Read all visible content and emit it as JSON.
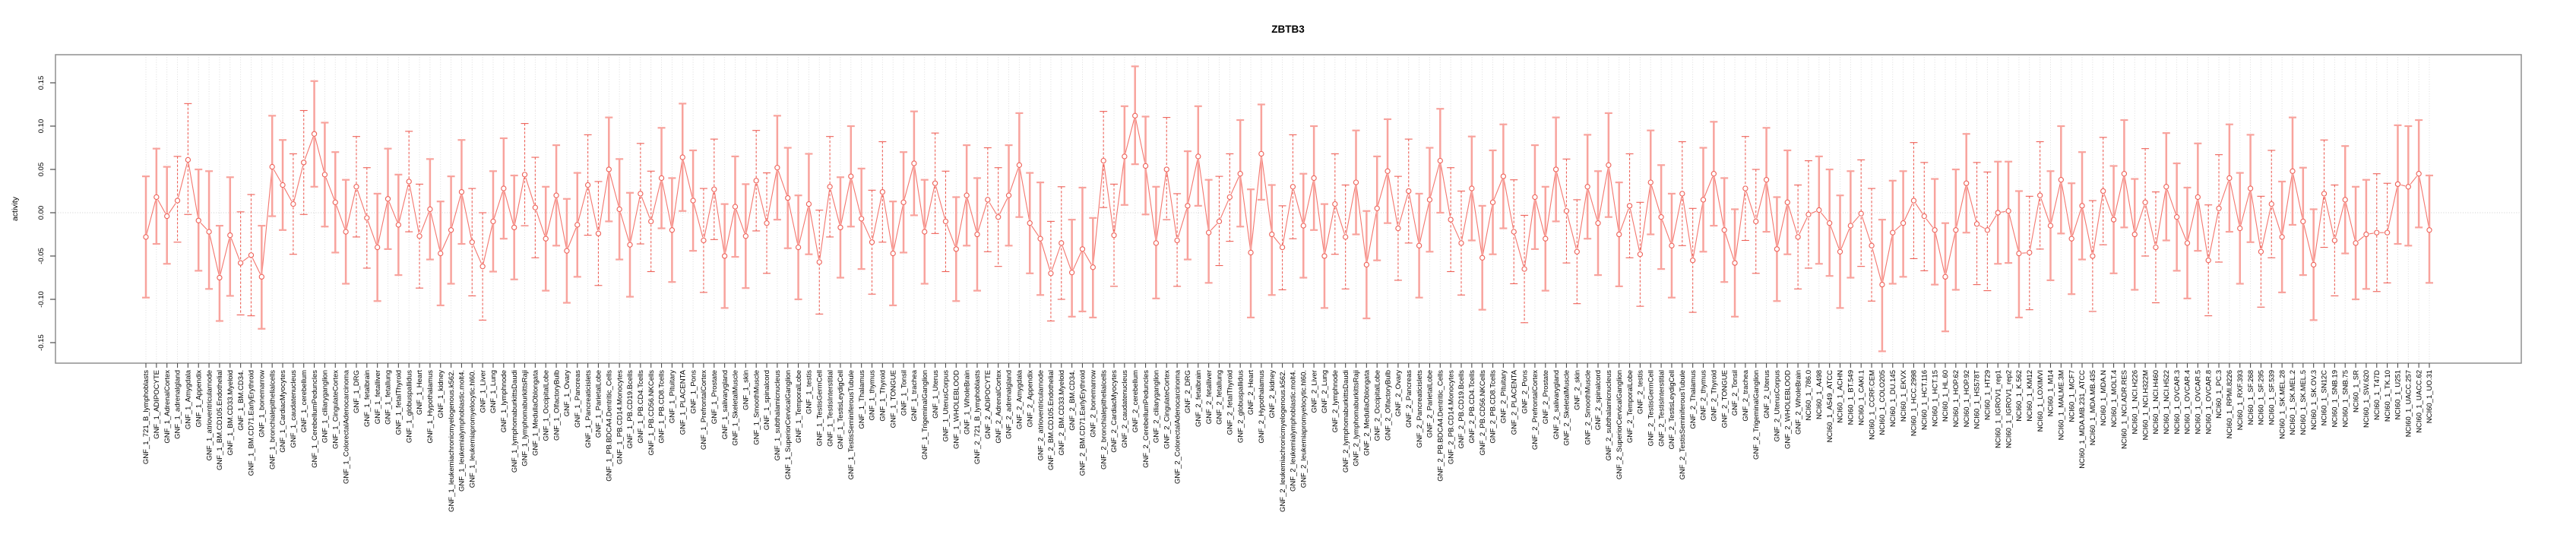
{
  "figure": {
    "title": "ZBTB3",
    "ylabel": "activity"
  },
  "style": {
    "series_line_color": "#f4766e",
    "point_stroke_color": "#ee6158",
    "point_fill_color": "#ffffff",
    "errorbar_dashed_color": "#ee6158",
    "errorbar_solid_color": "#f8a39d",
    "grid_color": "#d9d9d9",
    "zero_line_color": "#cfcfcf",
    "box_color": "#8f8f8f",
    "tick_color": "#4d4d4d",
    "text_color": "#000000",
    "background": "#ffffff"
  },
  "chart_data": {
    "type": "line",
    "subtype": "means-with-confidence-error-bars",
    "title": "ZBTB3",
    "xlabel": "",
    "ylabel": "activity",
    "legend": "none",
    "grid": "dotted vertical line per category; dotted horizontal line at 0",
    "ylim": [
      -0.174,
      0.182
    ],
    "yticks": [
      -0.15,
      -0.1,
      -0.05,
      0.0,
      0.05,
      0.1,
      0.15
    ],
    "ytick_labels": [
      "-0.15",
      "-0.10",
      "-0.05",
      "0.00",
      "0.05",
      "0.10",
      "0.15"
    ],
    "n_points": 218,
    "point_format": "[mean, ci_low, ci_high]",
    "groups": [
      {
        "prefix": "GNF_1_",
        "names_key": "gnf_tissues",
        "points_key": "points_gnf1"
      },
      {
        "prefix": "GNF_2_",
        "names_key": "gnf_tissues",
        "points_key": "points_gnf2"
      },
      {
        "prefix": "NCI60_1_",
        "names_key": "nci60_lines",
        "points_key": "points_nci60"
      }
    ],
    "gnf_tissues": [
      "721_B_lymphoblasts",
      "ADIPOCYTE",
      "AdrenalCortex",
      "adrenalgland",
      "Amygdala",
      "Appendix",
      "atrioventricularnode",
      "BM.CD105.Endothelial",
      "BM.CD33.Myeloid",
      "BM.CD34.",
      "BM.CD71.EarlyErythroid",
      "bonemarrow",
      "bronchialepithelialcells",
      "CardiacMyocytes",
      "caudatenucleus",
      "cerebellum",
      "CerebellumPeduncles",
      "ciliaryganglion",
      "CingulateCortex",
      "ColorectalAdenocarcinoma",
      "DRG",
      "fetalbrain",
      "fetalliver",
      "fetallung",
      "fetalThyroid",
      "globuspallidus",
      "Heart",
      "Hypothalamus",
      "kidney",
      "leukemiachronicmyelogenous.k562.",
      "leukemialymphoblastic.molt4.",
      "leukemiapromyelocytic.hl60.",
      "Liver",
      "Lung",
      "lymphnode",
      "lymphomaburkittsDaudi",
      "lymphomaburkittsRaji",
      "MedullaOblongata",
      "OccipitalLobe",
      "OlfactoryBulb",
      "Ovary",
      "Pancreas",
      "Pancreaticislets",
      "ParietalLobe",
      "PB.BDCA4.Dentritic_Cells",
      "PB.CD14.Monocytes",
      "PB.CD19.Bcells",
      "PB.CD4.Tcells",
      "PB.CD56.NKCells",
      "PB.CD8.Tcells",
      "Pituitary",
      "PLACENTA",
      "Pons",
      "PrefrontalCortex",
      "Prostate",
      "salivarygland",
      "SkeletalMuscle",
      "skin",
      "SmoothMuscle",
      "spinalcord",
      "subthalamicnucleus",
      "SuperiorCervicalGanglion",
      "TemporalLobe",
      "testis",
      "TestisGermCell",
      "TestisInterstitial",
      "TestisLeydigCell",
      "TestisSeminiferousTubule",
      "Thalamus",
      "thymus",
      "Thyroid",
      "TONGUE",
      "Tonsil",
      "trachea",
      "TrigeminalGanglion",
      "Uterus",
      "UterusCorpus",
      "WHOLEBLOOD",
      "WholeBrain"
    ],
    "nci60_lines": [
      "786.0",
      "A498",
      "A549_ATCC",
      "ACHN",
      "BT.549",
      "CAKI.1",
      "CCRF.CEM",
      "COLO205",
      "DU.145",
      "EKVX",
      "HCC.2998",
      "HCT.116",
      "HCT.15",
      "HL.60",
      "HOP.62",
      "HOP.92",
      "HS578T",
      "HT29",
      "IGROV1_rep1",
      "IGROV1_rep2",
      "K.562",
      "KM12",
      "LOXIMVI",
      "M14",
      "MALME.3M",
      "MCF7",
      "MDA.MB.231_ATCC",
      "MDA.MB.435",
      "MDA.N",
      "MOLT.4",
      "NCI.ADR.RES",
      "NCI.H226",
      "NCI.H322M",
      "NCI.H460",
      "NCI.H522",
      "OVCAR.3",
      "OVCAR.4",
      "OVCAR.5",
      "OVCAR.8",
      "PC.3",
      "RPMI.8226",
      "RXF.393",
      "SF.268",
      "SF.295",
      "SF.539",
      "SK.MEL.28",
      "SK.MEL.2",
      "SK.MEL.5",
      "SK.OV.3",
      "SN12C",
      "SNB.19",
      "SNB.75",
      "SR",
      "SW.620",
      "T47D",
      "TK.10",
      "U251",
      "UACC.257",
      "UACC.62",
      "UO.31"
    ],
    "points_gnf1": [
      [
        -0.028,
        -0.098,
        0.042
      ],
      [
        0.018,
        -0.036,
        0.074
      ],
      [
        -0.004,
        -0.059,
        0.053
      ],
      [
        0.014,
        -0.034,
        0.065
      ],
      [
        0.061,
        -0.002,
        0.126
      ],
      [
        -0.009,
        -0.067,
        0.05
      ],
      [
        -0.022,
        -0.088,
        0.048
      ],
      [
        -0.075,
        -0.125,
        -0.015
      ],
      [
        -0.026,
        -0.096,
        0.041
      ],
      [
        -0.058,
        -0.118,
        0.001
      ],
      [
        -0.049,
        -0.119,
        0.021
      ],
      [
        -0.074,
        -0.134,
        -0.015
      ],
      [
        0.053,
        -0.004,
        0.112
      ],
      [
        0.032,
        -0.02,
        0.084
      ],
      [
        0.01,
        -0.048,
        0.068
      ],
      [
        0.058,
        -0.002,
        0.118
      ],
      [
        0.091,
        0.03,
        0.152
      ],
      [
        0.044,
        -0.016,
        0.104
      ],
      [
        0.012,
        -0.046,
        0.07
      ],
      [
        -0.022,
        -0.082,
        0.038
      ],
      [
        0.03,
        -0.028,
        0.088
      ],
      [
        -0.006,
        -0.064,
        0.052
      ],
      [
        -0.04,
        -0.102,
        0.022
      ],
      [
        0.016,
        -0.042,
        0.074
      ],
      [
        -0.014,
        -0.072,
        0.044
      ],
      [
        0.036,
        -0.022,
        0.094
      ],
      [
        -0.027,
        -0.087,
        0.033
      ],
      [
        0.004,
        -0.054,
        0.062
      ],
      [
        -0.047,
        -0.107,
        0.013
      ],
      [
        -0.02,
        -0.082,
        0.042
      ],
      [
        0.024,
        -0.036,
        0.084
      ],
      [
        -0.034,
        -0.096,
        0.028
      ],
      [
        -0.062,
        -0.124,
        0.0
      ],
      [
        -0.01,
        -0.068,
        0.048
      ],
      [
        0.028,
        -0.03,
        0.086
      ],
      [
        -0.017,
        -0.077,
        0.043
      ],
      [
        0.044,
        -0.015,
        0.103
      ],
      [
        0.006,
        -0.052,
        0.064
      ],
      [
        -0.03,
        -0.09,
        0.03
      ],
      [
        0.02,
        -0.038,
        0.078
      ],
      [
        -0.044,
        -0.104,
        0.016
      ],
      [
        -0.014,
        -0.074,
        0.046
      ],
      [
        0.032,
        -0.026,
        0.09
      ],
      [
        -0.024,
        -0.084,
        0.036
      ],
      [
        0.05,
        -0.01,
        0.11
      ],
      [
        0.004,
        -0.054,
        0.062
      ],
      [
        -0.037,
        -0.097,
        0.023
      ],
      [
        0.022,
        -0.036,
        0.08
      ],
      [
        -0.01,
        -0.068,
        0.048
      ],
      [
        0.04,
        -0.018,
        0.098
      ],
      [
        -0.02,
        -0.08,
        0.04
      ],
      [
        0.064,
        0.002,
        0.126
      ],
      [
        0.014,
        -0.044,
        0.072
      ],
      [
        -0.032,
        -0.092,
        0.028
      ],
      [
        0.027,
        -0.031,
        0.085
      ],
      [
        -0.05,
        -0.11,
        0.01
      ],
      [
        0.007,
        -0.051,
        0.065
      ],
      [
        -0.027,
        -0.087,
        0.033
      ],
      [
        0.037,
        -0.021,
        0.095
      ],
      [
        -0.012,
        -0.07,
        0.046
      ],
      [
        0.052,
        -0.008,
        0.112
      ],
      [
        0.017,
        -0.041,
        0.075
      ],
      [
        -0.04,
        -0.1,
        0.02
      ],
      [
        0.01,
        -0.048,
        0.068
      ],
      [
        -0.057,
        -0.117,
        0.003
      ],
      [
        0.03,
        -0.028,
        0.088
      ],
      [
        -0.017,
        -0.075,
        0.041
      ],
      [
        0.042,
        -0.016,
        0.1
      ],
      [
        -0.007,
        -0.065,
        0.051
      ],
      [
        -0.034,
        -0.094,
        0.026
      ],
      [
        0.024,
        -0.034,
        0.082
      ],
      [
        -0.047,
        -0.107,
        0.013
      ],
      [
        0.012,
        -0.046,
        0.07
      ],
      [
        0.057,
        -0.003,
        0.117
      ],
      [
        -0.022,
        -0.082,
        0.038
      ],
      [
        0.034,
        -0.024,
        0.092
      ],
      [
        -0.01,
        -0.068,
        0.048
      ],
      [
        -0.042,
        -0.102,
        0.018
      ],
      [
        0.02,
        -0.038,
        0.078
      ]
    ],
    "points_gnf2": [
      [
        -0.025,
        -0.09,
        0.04
      ],
      [
        0.015,
        -0.045,
        0.075
      ],
      [
        -0.005,
        -0.062,
        0.052
      ],
      [
        0.02,
        -0.038,
        0.078
      ],
      [
        0.055,
        -0.005,
        0.115
      ],
      [
        -0.012,
        -0.07,
        0.046
      ],
      [
        -0.03,
        -0.095,
        0.035
      ],
      [
        -0.07,
        -0.125,
        -0.01
      ],
      [
        -0.035,
        -0.1,
        0.03
      ],
      [
        -0.069,
        -0.12,
        -0.008
      ],
      [
        -0.042,
        -0.114,
        0.029
      ],
      [
        -0.063,
        -0.121,
        -0.006
      ],
      [
        0.06,
        0.006,
        0.117
      ],
      [
        -0.026,
        -0.085,
        0.033
      ],
      [
        0.065,
        0.009,
        0.123
      ],
      [
        0.112,
        0.056,
        0.169
      ],
      [
        0.054,
        -0.002,
        0.111
      ],
      [
        -0.035,
        -0.099,
        0.03
      ],
      [
        0.05,
        -0.008,
        0.11
      ],
      [
        -0.032,
        -0.085,
        0.022
      ],
      [
        0.008,
        -0.054,
        0.071
      ],
      [
        0.065,
        0.008,
        0.123
      ],
      [
        -0.023,
        -0.081,
        0.038
      ],
      [
        -0.01,
        -0.061,
        0.042
      ],
      [
        0.018,
        -0.033,
        0.068
      ],
      [
        0.045,
        -0.016,
        0.107
      ],
      [
        -0.046,
        -0.121,
        0.027
      ],
      [
        0.068,
        0.015,
        0.125
      ],
      [
        -0.025,
        -0.095,
        0.032
      ],
      [
        -0.04,
        -0.089,
        0.008
      ],
      [
        0.03,
        -0.03,
        0.09
      ],
      [
        -0.015,
        -0.075,
        0.045
      ],
      [
        0.04,
        -0.02,
        0.1
      ],
      [
        -0.05,
        -0.11,
        0.01
      ],
      [
        0.01,
        -0.048,
        0.068
      ],
      [
        -0.028,
        -0.088,
        0.032
      ],
      [
        0.035,
        -0.025,
        0.095
      ],
      [
        -0.06,
        -0.122,
        0.002
      ],
      [
        0.005,
        -0.055,
        0.065
      ],
      [
        0.048,
        -0.012,
        0.108
      ],
      [
        -0.018,
        -0.078,
        0.042
      ],
      [
        0.025,
        -0.035,
        0.085
      ],
      [
        -0.038,
        -0.098,
        0.022
      ],
      [
        0.015,
        -0.045,
        0.075
      ],
      [
        0.06,
        0.0,
        0.12
      ],
      [
        -0.008,
        -0.068,
        0.052
      ],
      [
        -0.035,
        -0.095,
        0.025
      ],
      [
        0.028,
        -0.032,
        0.088
      ],
      [
        -0.052,
        -0.112,
        0.008
      ],
      [
        0.012,
        -0.048,
        0.072
      ],
      [
        0.042,
        -0.018,
        0.102
      ],
      [
        -0.022,
        -0.082,
        0.038
      ],
      [
        -0.065,
        -0.127,
        -0.003
      ],
      [
        0.018,
        -0.042,
        0.078
      ],
      [
        -0.03,
        -0.09,
        0.03
      ],
      [
        0.05,
        -0.01,
        0.11
      ],
      [
        0.002,
        -0.058,
        0.062
      ],
      [
        -0.045,
        -0.105,
        0.015
      ],
      [
        0.03,
        -0.03,
        0.09
      ],
      [
        -0.012,
        -0.072,
        0.048
      ],
      [
        0.055,
        -0.005,
        0.115
      ],
      [
        -0.025,
        -0.085,
        0.035
      ],
      [
        0.008,
        -0.052,
        0.068
      ],
      [
        -0.048,
        -0.108,
        0.012
      ],
      [
        0.035,
        -0.025,
        0.095
      ],
      [
        -0.005,
        -0.065,
        0.055
      ],
      [
        -0.038,
        -0.098,
        0.022
      ],
      [
        0.022,
        -0.038,
        0.082
      ],
      [
        -0.055,
        -0.115,
        0.005
      ],
      [
        0.015,
        -0.045,
        0.075
      ],
      [
        0.045,
        -0.015,
        0.105
      ],
      [
        -0.02,
        -0.08,
        0.04
      ],
      [
        -0.058,
        -0.12,
        0.004
      ],
      [
        0.028,
        -0.032,
        0.088
      ],
      [
        -0.01,
        -0.07,
        0.05
      ],
      [
        0.038,
        -0.022,
        0.098
      ],
      [
        -0.042,
        -0.102,
        0.018
      ],
      [
        0.012,
        -0.048,
        0.072
      ],
      [
        -0.028,
        -0.088,
        0.032
      ]
    ],
    "points_nci60": [
      [
        -0.002,
        -0.064,
        0.06
      ],
      [
        0.003,
        -0.059,
        0.065
      ],
      [
        -0.012,
        -0.073,
        0.05
      ],
      [
        -0.045,
        -0.11,
        0.02
      ],
      [
        -0.015,
        -0.075,
        0.048
      ],
      [
        -0.001,
        -0.062,
        0.061
      ],
      [
        -0.038,
        -0.102,
        0.028
      ],
      [
        -0.083,
        -0.16,
        -0.008
      ],
      [
        -0.023,
        -0.082,
        0.037
      ],
      [
        -0.012,
        -0.074,
        0.048
      ],
      [
        0.014,
        -0.053,
        0.081
      ],
      [
        -0.004,
        -0.067,
        0.058
      ],
      [
        -0.02,
        -0.083,
        0.039
      ],
      [
        -0.074,
        -0.137,
        -0.012
      ],
      [
        -0.02,
        -0.089,
        0.05
      ],
      [
        0.034,
        -0.023,
        0.091
      ],
      [
        -0.013,
        -0.083,
        0.058
      ],
      [
        -0.02,
        -0.09,
        0.047
      ],
      [
        0.0,
        -0.059,
        0.059
      ],
      [
        0.002,
        -0.058,
        0.059
      ],
      [
        -0.047,
        -0.121,
        0.025
      ],
      [
        -0.046,
        -0.112,
        0.019
      ],
      [
        0.02,
        -0.042,
        0.082
      ],
      [
        -0.015,
        -0.078,
        0.048
      ],
      [
        0.038,
        -0.024,
        0.1
      ],
      [
        -0.03,
        -0.094,
        0.034
      ],
      [
        0.008,
        -0.054,
        0.07
      ],
      [
        -0.05,
        -0.114,
        0.014
      ],
      [
        0.025,
        -0.037,
        0.087
      ],
      [
        -0.008,
        -0.07,
        0.054
      ],
      [
        0.045,
        -0.017,
        0.107
      ],
      [
        -0.025,
        -0.089,
        0.039
      ],
      [
        0.012,
        -0.05,
        0.074
      ],
      [
        -0.04,
        -0.104,
        0.024
      ],
      [
        0.03,
        -0.032,
        0.092
      ],
      [
        -0.005,
        -0.067,
        0.057
      ],
      [
        -0.035,
        -0.099,
        0.029
      ],
      [
        0.018,
        -0.044,
        0.08
      ],
      [
        -0.055,
        -0.119,
        0.009
      ],
      [
        0.005,
        -0.057,
        0.067
      ],
      [
        0.04,
        -0.022,
        0.102
      ],
      [
        -0.018,
        -0.082,
        0.046
      ],
      [
        0.028,
        -0.034,
        0.09
      ],
      [
        -0.045,
        -0.109,
        0.019
      ],
      [
        0.01,
        -0.052,
        0.072
      ],
      [
        -0.028,
        -0.092,
        0.036
      ],
      [
        0.048,
        -0.014,
        0.11
      ],
      [
        -0.01,
        -0.072,
        0.052
      ],
      [
        -0.06,
        -0.124,
        0.004
      ],
      [
        0.022,
        -0.04,
        0.084
      ],
      [
        -0.032,
        -0.096,
        0.032
      ],
      [
        0.015,
        -0.047,
        0.077
      ],
      [
        -0.035,
        -0.1,
        0.03
      ],
      [
        -0.025,
        -0.088,
        0.038
      ],
      [
        -0.023,
        -0.091,
        0.045
      ],
      [
        -0.023,
        -0.081,
        0.034
      ],
      [
        0.033,
        -0.036,
        0.101
      ],
      [
        0.03,
        -0.038,
        0.1
      ],
      [
        0.045,
        -0.017,
        0.107
      ],
      [
        -0.02,
        -0.081,
        0.043
      ]
    ]
  }
}
